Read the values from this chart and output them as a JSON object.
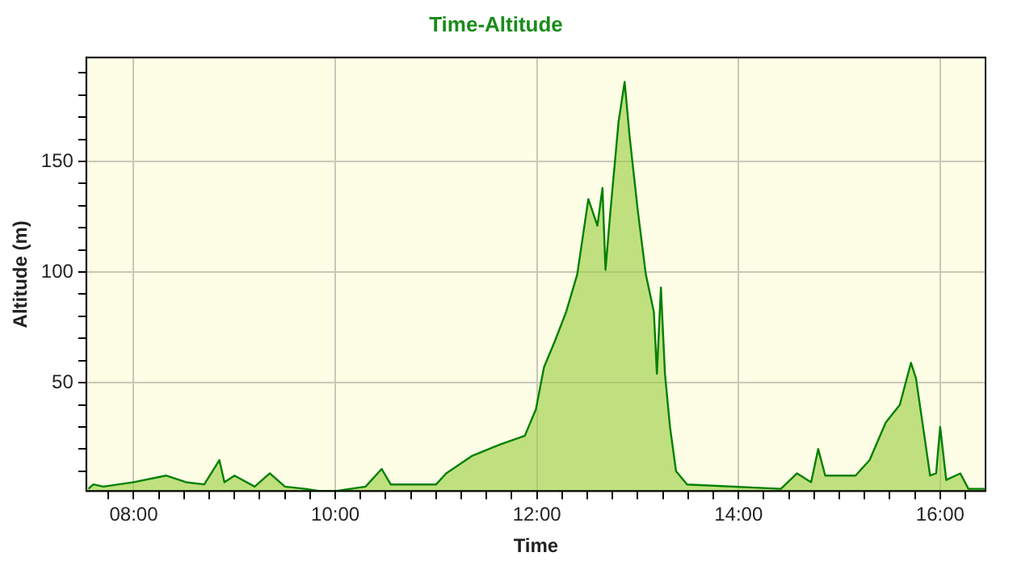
{
  "chart_data": {
    "type": "area",
    "title": "Time-Altitude",
    "xlabel": "Time",
    "ylabel": "Altitude (m)",
    "x": [
      7.55,
      7.6,
      7.7,
      8.0,
      8.32,
      8.52,
      8.7,
      8.85,
      8.9,
      9.0,
      9.2,
      9.35,
      9.5,
      9.7,
      9.85,
      10.0,
      10.3,
      10.46,
      10.55,
      11.0,
      11.1,
      11.36,
      11.63,
      11.88,
      11.99,
      12.07,
      12.18,
      12.29,
      12.4,
      12.51,
      12.6,
      12.65,
      12.68,
      12.73,
      12.81,
      12.87,
      12.92,
      13.0,
      13.08,
      13.16,
      13.19,
      13.23,
      13.27,
      13.32,
      13.38,
      13.49,
      14.42,
      14.58,
      14.72,
      14.79,
      14.86,
      15.16,
      15.3,
      15.46,
      15.6,
      15.71,
      15.76,
      15.84,
      15.9,
      15.96,
      16.0,
      16.06,
      16.2,
      16.28,
      16.44
    ],
    "series": [
      {
        "color": "#008000",
        "values": [
          2,
          4,
          3,
          5,
          8,
          5,
          4,
          15,
          5,
          8,
          3,
          9,
          3,
          2,
          1,
          1,
          3,
          11,
          4,
          4,
          9,
          17,
          22,
          26,
          38,
          57,
          69,
          82,
          99,
          133,
          121,
          138,
          101,
          128,
          168,
          186,
          161,
          128,
          99,
          82,
          54,
          93,
          54,
          30,
          10,
          4,
          2,
          9,
          5,
          20,
          8,
          8,
          15,
          32,
          40,
          59,
          52,
          27,
          8,
          9,
          30,
          6,
          9,
          2,
          2
        ]
      }
    ],
    "xlim": [
      7.53,
      16.45
    ],
    "xticks": [
      {
        "value": 7.75,
        "label": null
      },
      {
        "value": 8,
        "label": "08:00"
      },
      {
        "value": 8.25,
        "label": null
      },
      {
        "value": 8.5,
        "label": null
      },
      {
        "value": 8.75,
        "label": null
      },
      {
        "value": 9,
        "label": null
      },
      {
        "value": 9.25,
        "label": null
      },
      {
        "value": 9.5,
        "label": null
      },
      {
        "value": 9.75,
        "label": null
      },
      {
        "value": 10,
        "label": "10:00"
      },
      {
        "value": 10.25,
        "label": null
      },
      {
        "value": 10.5,
        "label": null
      },
      {
        "value": 10.75,
        "label": null
      },
      {
        "value": 11,
        "label": null
      },
      {
        "value": 11.25,
        "label": null
      },
      {
        "value": 11.5,
        "label": null
      },
      {
        "value": 11.75,
        "label": null
      },
      {
        "value": 12,
        "label": "12:00"
      },
      {
        "value": 12.25,
        "label": null
      },
      {
        "value": 12.5,
        "label": null
      },
      {
        "value": 12.75,
        "label": null
      },
      {
        "value": 13,
        "label": null
      },
      {
        "value": 13.25,
        "label": null
      },
      {
        "value": 13.5,
        "label": null
      },
      {
        "value": 13.75,
        "label": null
      },
      {
        "value": 14,
        "label": "14:00"
      },
      {
        "value": 14.25,
        "label": null
      },
      {
        "value": 14.5,
        "label": null
      },
      {
        "value": 14.75,
        "label": null
      },
      {
        "value": 15,
        "label": null
      },
      {
        "value": 15.25,
        "label": null
      },
      {
        "value": 15.5,
        "label": null
      },
      {
        "value": 15.75,
        "label": null
      },
      {
        "value": 16,
        "label": "16:00"
      },
      {
        "value": 16.25,
        "label": null
      }
    ],
    "ylim": [
      1,
      197
    ],
    "yticks": [
      {
        "value": 10,
        "label": null
      },
      {
        "value": 20,
        "label": null
      },
      {
        "value": 30,
        "label": null
      },
      {
        "value": 40,
        "label": null
      },
      50,
      {
        "value": 60,
        "label": null
      },
      {
        "value": 70,
        "label": null
      },
      {
        "value": 80,
        "label": null
      },
      {
        "value": 90,
        "label": null
      },
      100,
      {
        "value": 110,
        "label": null
      },
      {
        "value": 120,
        "label": null
      },
      {
        "value": 130,
        "label": null
      },
      {
        "value": 140,
        "label": null
      },
      150,
      {
        "value": 160,
        "label": null
      },
      {
        "value": 170,
        "label": null
      },
      {
        "value": 180,
        "label": null
      },
      {
        "value": 190,
        "label": null
      }
    ],
    "grid": true,
    "legend": false,
    "marker": "none",
    "line_style": "solid"
  }
}
